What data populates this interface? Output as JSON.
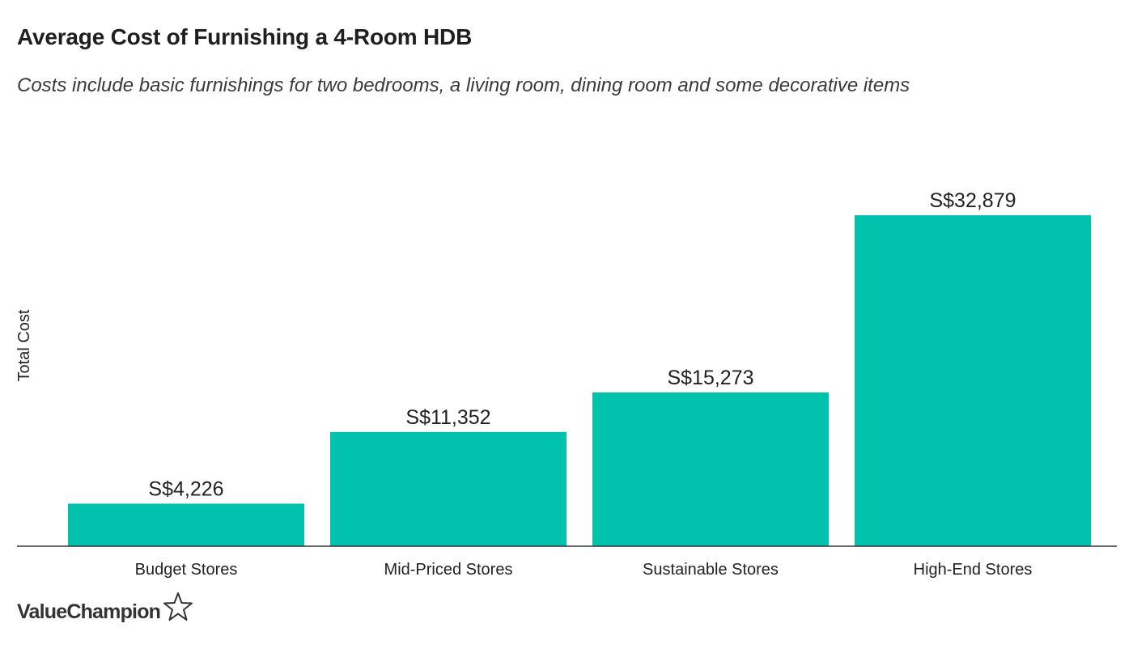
{
  "header": {
    "title": "Average Cost of Furnishing a 4-Room HDB",
    "subtitle": "Costs include basic furnishings for two bedrooms, a living room, dining room and some decorative items"
  },
  "colors": {
    "bar": "#00C2AD",
    "axis": "#333333",
    "text": "#222222"
  },
  "chart_data": {
    "type": "bar",
    "title": "Average Cost of Furnishing a 4-Room HDB",
    "subtitle": "Costs include basic furnishings for two bedrooms, a living room, dining room and some decorative items",
    "xlabel": "",
    "ylabel": "Total Cost",
    "categories": [
      "Budget Stores",
      "Mid-Priced Stores",
      "Sustainable Stores",
      "High-End Stores"
    ],
    "values": [
      4226,
      11352,
      15273,
      32879
    ],
    "data_labels": [
      "S$4,226",
      "S$11,352",
      "S$15,273",
      "S$32,879"
    ],
    "ylim": [
      0,
      32879
    ],
    "grid": false,
    "legend": "none"
  },
  "branding": {
    "logo_text": "ValueChampion",
    "logo_icon": "star-outline-icon"
  }
}
